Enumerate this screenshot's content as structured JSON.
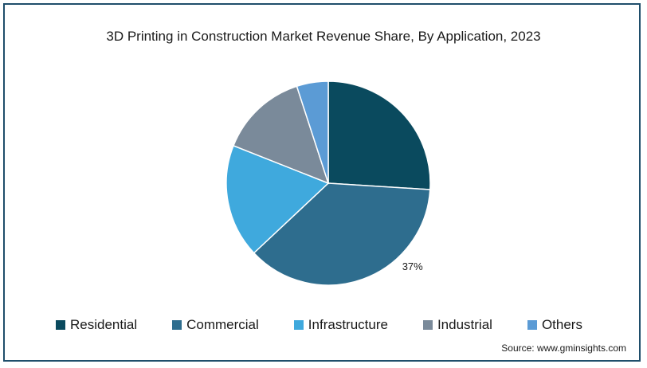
{
  "chart_data": {
    "type": "pie",
    "title": "3D Printing in Construction Market Revenue Share, By Application, 2023",
    "categories": [
      "Residential",
      "Commercial",
      "Infrastructure",
      "Industrial",
      "Others"
    ],
    "values": [
      26,
      37,
      18,
      14,
      5
    ],
    "colors": [
      "#0a4a5e",
      "#2e6d8e",
      "#3fa9dd",
      "#7a8a9a",
      "#5b9bd5"
    ],
    "data_labels": [
      "",
      "37%",
      "",
      "",
      ""
    ],
    "legend_position": "bottom",
    "start": "top",
    "direction": "clockwise"
  },
  "source": "Source: www.gminsights.com"
}
